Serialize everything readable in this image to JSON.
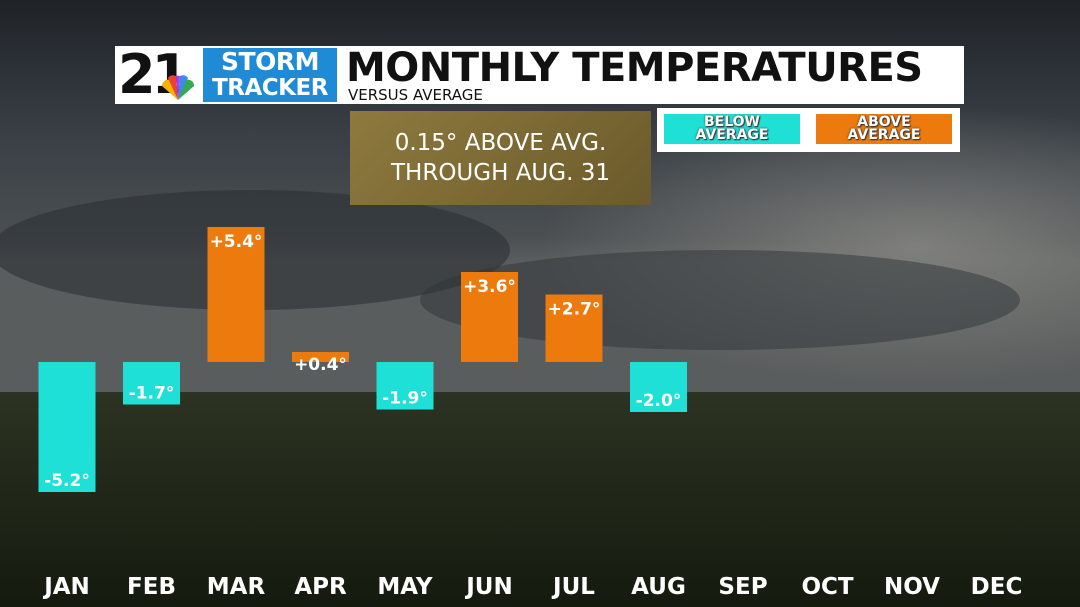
{
  "brand": {
    "channel_number": "21",
    "logo_line1": "STORM",
    "logo_line2": "TRACKER",
    "logo_color": "#1f8ad6"
  },
  "header": {
    "title": "MONTHLY TEMPERATURES",
    "subtitle": "VERSUS AVERAGE"
  },
  "legend": {
    "below_label": "BELOW\nAVERAGE",
    "above_label": "ABOVE\nAVERAGE"
  },
  "summary": {
    "line1": "0.15° ABOVE AVG.",
    "line2": "THROUGH AUG. 31"
  },
  "chart_data": {
    "type": "bar",
    "title": "MONTHLY TEMPERATURES",
    "subtitle": "VERSUS AVERAGE",
    "categories": [
      "JAN",
      "FEB",
      "MAR",
      "APR",
      "MAY",
      "JUN",
      "JUL",
      "AUG",
      "SEP",
      "OCT",
      "NOV",
      "DEC"
    ],
    "values": [
      -5.2,
      -1.7,
      5.4,
      0.4,
      -1.9,
      3.6,
      2.7,
      -2.0,
      null,
      null,
      null,
      null
    ],
    "value_labels": [
      "-5.2°",
      "-1.7°",
      "+5.4°",
      "+0.4°",
      "-1.9°",
      "+3.6°",
      "+2.7°",
      "-2.0°",
      "",
      "",
      "",
      ""
    ],
    "series_colors": {
      "below": "#1fe0d6",
      "above": "#ec7a0c"
    },
    "legend": [
      "BELOW AVERAGE",
      "ABOVE AVERAGE"
    ],
    "legend_position": "top-right",
    "grid": false,
    "xlabel": "",
    "ylabel": ""
  }
}
